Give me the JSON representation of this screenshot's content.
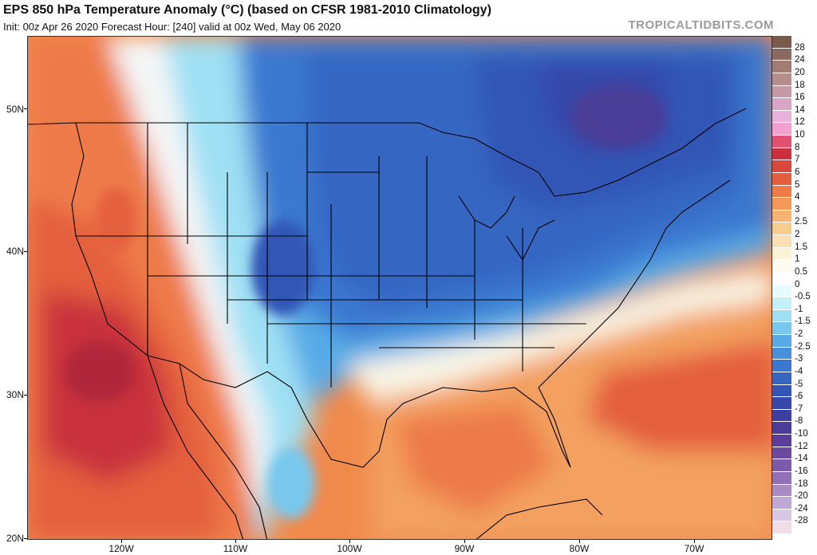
{
  "header": {
    "title": "EPS 850 hPa Temperature Anomaly (°C) (based on CFSR 1981-2010 Climatology)",
    "subtitle": "Init: 00z Apr 26 2020   Forecast Hour: [240]   valid at 00z Wed, May 06 2020",
    "credit": "TROPICALTIDBITS.COM"
  },
  "axes": {
    "lat_labels": [
      "50N",
      "40N",
      "30N",
      "20N"
    ],
    "lon_labels": [
      "120W",
      "110W",
      "100W",
      "90W",
      "80W",
      "70W"
    ]
  },
  "legend": {
    "labels": [
      "28",
      "24",
      "20",
      "18",
      "16",
      "14",
      "12",
      "10",
      "8",
      "7",
      "6",
      "5",
      "4",
      "3",
      "2.5",
      "2",
      "1.5",
      "1",
      "0.5",
      "0",
      "-0.5",
      "-1",
      "-1.5",
      "-2",
      "-2.5",
      "-3",
      "-4",
      "-5",
      "-6",
      "-7",
      "-8",
      "-10",
      "-12",
      "-14",
      "-16",
      "-18",
      "-20",
      "-24",
      "-28"
    ],
    "colors": [
      "#7a5a4a",
      "#8a6a5e",
      "#a07c72",
      "#b48e8a",
      "#c59aa6",
      "#d6a6c4",
      "#e7b2dc",
      "#f2a0ce",
      "#e05070",
      "#c9303c",
      "#d8463c",
      "#e45e3e",
      "#ee7a48",
      "#f39858",
      "#f6b470",
      "#f8cb8e",
      "#fae0b4",
      "#fcf2d6",
      "#fdfbf0",
      "#fefefe",
      "#e6fbfb",
      "#c4f0f8",
      "#9fe0f4",
      "#78c8ee",
      "#58aae6",
      "#4690dc",
      "#3a78d0",
      "#3466c2",
      "#3256b6",
      "#3648aa",
      "#3c3ea0",
      "#4a3c98",
      "#5a3e9a",
      "#6c4aa0",
      "#7e5aaa",
      "#9270b8",
      "#a88ac6",
      "#c0a8d6",
      "#d8c8e6"
    ]
  }
}
